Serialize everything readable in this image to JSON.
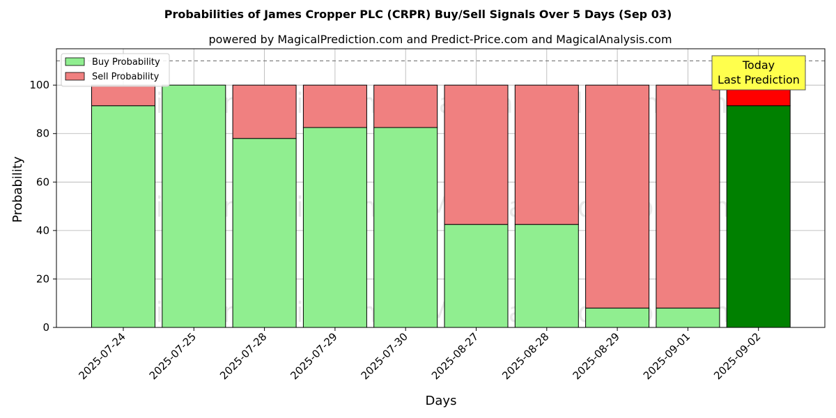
{
  "chart_data": {
    "type": "bar",
    "stacked": true,
    "title": "Probabilities of James Cropper PLC (CRPR) Buy/Sell Signals Over 5 Days (Sep 03)",
    "subtitle": "powered by MagicalPrediction.com and Predict-Price.com and MagicalAnalysis.com",
    "xlabel": "Days",
    "ylabel": "Probability",
    "ylim": [
      0,
      115
    ],
    "yticks": [
      0,
      20,
      40,
      60,
      80,
      100
    ],
    "reference_line": 110,
    "grid": true,
    "legend_position": "top-left",
    "categories": [
      "2025-07-24",
      "2025-07-25",
      "2025-07-28",
      "2025-07-29",
      "2025-07-30",
      "2025-08-27",
      "2025-08-28",
      "2025-08-29",
      "2025-09-01",
      "2025-09-02"
    ],
    "series": [
      {
        "name": "Buy Probability",
        "values": [
          91.5,
          100,
          78,
          82.5,
          82.5,
          42.5,
          42.5,
          8,
          8,
          91.5
        ]
      },
      {
        "name": "Sell Probability",
        "values": [
          8.5,
          0,
          22,
          17.5,
          17.5,
          57.5,
          57.5,
          92,
          92,
          8.5
        ]
      }
    ],
    "colors": {
      "buy": "#90ee90",
      "sell": "#f08080",
      "buy_highlight": "#008000",
      "sell_highlight": "#ff0000",
      "annotation_bg": "#ffff4d"
    },
    "annotation": {
      "lines": [
        "Today",
        "Last Prediction"
      ],
      "category_index": 9
    },
    "watermarks": [
      "MagicalAnalysis.com",
      "MagicalPrediction.com",
      "MagicalAnalysis.com",
      "MagicalPrediction.com",
      "MagicalAnalysis.com",
      "MagicalPrediction.com"
    ]
  }
}
